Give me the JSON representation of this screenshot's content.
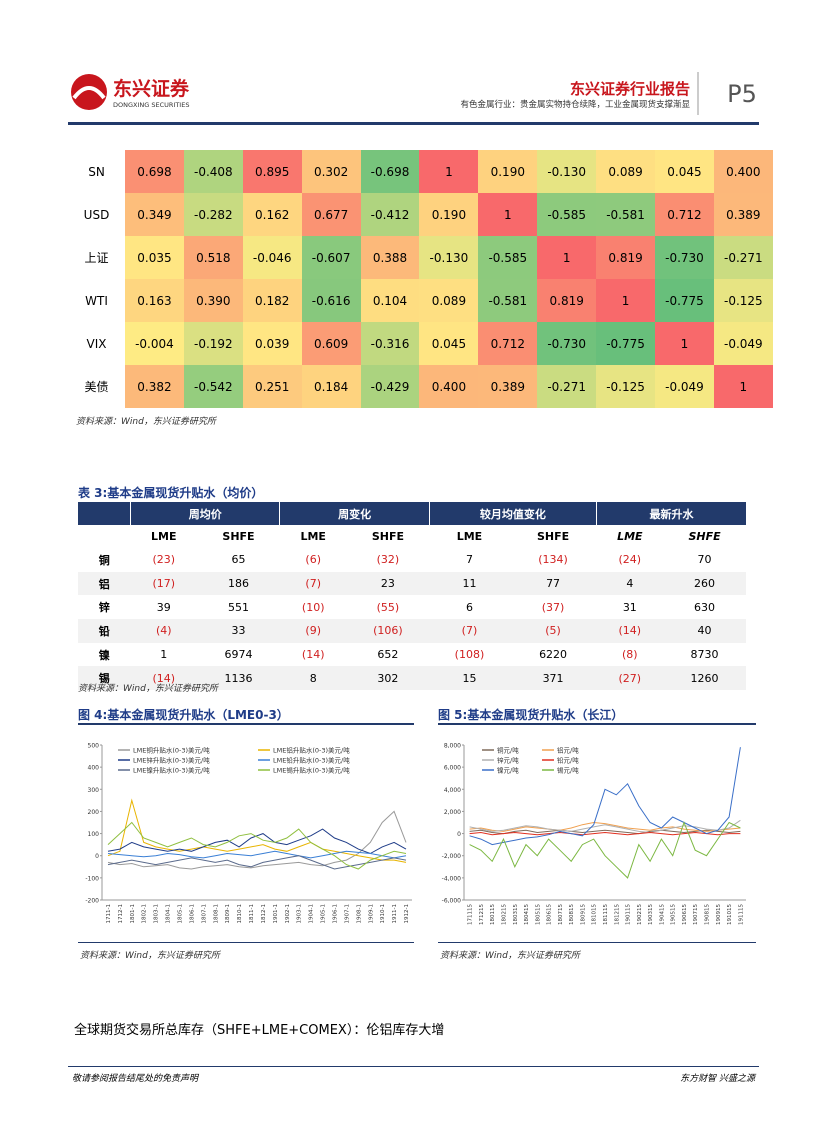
{
  "header": {
    "logo_cn": "东兴证券",
    "logo_en": "DONGXING SECURITIES",
    "report_title": "东兴证券行业报告",
    "subtitle": "有色金属行业：贵金属实物持仓续降，工业金属现货支撑渐显",
    "page": "P5"
  },
  "corr_table": {
    "rows": [
      {
        "label": "SN",
        "values": [
          "0.698",
          "-0.408",
          "0.895",
          "0.302",
          "-0.698",
          "1",
          "0.190",
          "-0.130",
          "0.089",
          "0.045",
          "0.400"
        ]
      },
      {
        "label": "USD",
        "values": [
          "0.349",
          "-0.282",
          "0.162",
          "0.677",
          "-0.412",
          "0.190",
          "1",
          "-0.585",
          "-0.581",
          "0.712",
          "0.389"
        ]
      },
      {
        "label": "上证",
        "values": [
          "0.035",
          "0.518",
          "-0.046",
          "-0.607",
          "0.388",
          "-0.130",
          "-0.585",
          "1",
          "0.819",
          "-0.730",
          "-0.271"
        ]
      },
      {
        "label": "WTI",
        "values": [
          "0.163",
          "0.390",
          "0.182",
          "-0.616",
          "0.104",
          "0.089",
          "-0.581",
          "0.819",
          "1",
          "-0.775",
          "-0.125"
        ]
      },
      {
        "label": "VIX",
        "values": [
          "-0.004",
          "-0.192",
          "0.039",
          "0.609",
          "-0.316",
          "0.045",
          "0.712",
          "-0.730",
          "-0.775",
          "1",
          "-0.049"
        ]
      },
      {
        "label": "美债",
        "values": [
          "0.382",
          "-0.542",
          "0.251",
          "0.184",
          "-0.429",
          "0.400",
          "0.389",
          "-0.271",
          "-0.125",
          "-0.049",
          "1"
        ]
      }
    ],
    "source": "资料来源：Wind，东兴证券研究所"
  },
  "premium_table": {
    "title": "表 3:基本金属现货升贴水（均价）",
    "groups": [
      "周均价",
      "周变化",
      "较月均值变化",
      "最新升水"
    ],
    "subheaders": [
      "LME",
      "SHFE",
      "LME",
      "SHFE",
      "LME",
      "SHFE",
      "LME",
      "SHFE"
    ],
    "rows": [
      {
        "label": "铜",
        "values": [
          "(23)",
          "65",
          "(6)",
          "(32)",
          "7",
          "(134)",
          "(24)",
          "70"
        ]
      },
      {
        "label": "铝",
        "values": [
          "(17)",
          "186",
          "(7)",
          "23",
          "11",
          "77",
          "4",
          "260"
        ]
      },
      {
        "label": "锌",
        "values": [
          "39",
          "551",
          "(10)",
          "(55)",
          "6",
          "(37)",
          "31",
          "630"
        ]
      },
      {
        "label": "铅",
        "values": [
          "(4)",
          "33",
          "(9)",
          "(106)",
          "(7)",
          "(5)",
          "(14)",
          "40"
        ]
      },
      {
        "label": "镍",
        "values": [
          "1",
          "6974",
          "(14)",
          "652",
          "(108)",
          "6220",
          "(8)",
          "8730"
        ]
      },
      {
        "label": "锡",
        "values": [
          "(14)",
          "1136",
          "8",
          "302",
          "15",
          "371",
          "(27)",
          "1260"
        ]
      }
    ],
    "source": "资料来源：Wind，东兴证券研究所"
  },
  "chart_data": [
    {
      "type": "line",
      "title": "图 4:基本金属现货升贴水（LME0-3）",
      "source": "资料来源：Wind，东兴证券研究所",
      "categories": [
        "1711-1",
        "1712-1",
        "1801-1",
        "1802-1",
        "1803-1",
        "1804-1",
        "1805-1",
        "1806-1",
        "1807-1",
        "1808-1",
        "1809-1",
        "1810-1",
        "1811-1",
        "1812-1",
        "1901-1",
        "1902-1",
        "1903-1",
        "1904-1",
        "1905-1",
        "1906-1",
        "1907-1",
        "1908-1",
        "1909-1",
        "1910-1",
        "1911-1",
        "1912-1"
      ],
      "ylim": [
        -200,
        500
      ],
      "yticks": [
        -200,
        -100,
        0,
        100,
        200,
        300,
        400,
        500
      ],
      "series": [
        {
          "name": "LME铜升贴水(0-3)美元/吨",
          "color": "#9a9a9a",
          "values": [
            -30,
            -40,
            -35,
            -50,
            -45,
            -40,
            -55,
            -60,
            -50,
            -45,
            -40,
            -50,
            -55,
            -45,
            -40,
            -35,
            -30,
            -40,
            -45,
            -30,
            -20,
            10,
            60,
            150,
            200,
            60
          ]
        },
        {
          "name": "LME铝升贴水(0-3)美元/吨",
          "color": "#e8b400",
          "values": [
            0,
            20,
            250,
            60,
            40,
            30,
            20,
            30,
            40,
            30,
            20,
            30,
            40,
            50,
            30,
            20,
            40,
            60,
            30,
            20,
            10,
            0,
            -10,
            -20,
            -20,
            -30
          ]
        },
        {
          "name": "LME锌升贴水(0-3)美元/吨",
          "color": "#1f3c88",
          "values": [
            20,
            30,
            60,
            40,
            30,
            20,
            30,
            20,
            40,
            60,
            70,
            40,
            80,
            100,
            60,
            50,
            70,
            90,
            120,
            80,
            60,
            30,
            10,
            40,
            60,
            30
          ]
        },
        {
          "name": "LME铅升贴水(0-3)美元/吨",
          "color": "#3a7fd5",
          "values": [
            10,
            5,
            0,
            -5,
            0,
            10,
            5,
            -5,
            -10,
            0,
            10,
            5,
            0,
            10,
            20,
            10,
            0,
            -10,
            0,
            10,
            20,
            15,
            10,
            0,
            -10,
            0
          ]
        },
        {
          "name": "LME镍升贴水(0-3)美元/吨",
          "color": "#5b6b8c",
          "values": [
            -40,
            -30,
            -20,
            -30,
            -40,
            -30,
            -20,
            -10,
            -20,
            -30,
            -20,
            -40,
            -50,
            -30,
            -20,
            -10,
            0,
            -20,
            -40,
            -60,
            -50,
            -40,
            -30,
            -20,
            -10,
            -20
          ]
        },
        {
          "name": "LME锡升贴水(0-3)美元/吨",
          "color": "#8fbf3f",
          "values": [
            50,
            100,
            150,
            80,
            60,
            40,
            60,
            80,
            50,
            40,
            60,
            90,
            100,
            70,
            60,
            80,
            120,
            60,
            30,
            0,
            -40,
            -60,
            -20,
            0,
            20,
            10
          ]
        }
      ]
    },
    {
      "type": "line",
      "title": "图 5:基本金属现货升贴水（长江）",
      "source": "资料来源：Wind，东兴证券研究所",
      "categories": [
        "171115",
        "171215",
        "180115",
        "180215",
        "180315",
        "180415",
        "180515",
        "180615",
        "180715",
        "180815",
        "180915",
        "181015",
        "181115",
        "181215",
        "190115",
        "190215",
        "190315",
        "190415",
        "190515",
        "190615",
        "190715",
        "190815",
        "190915",
        "191015",
        "191115"
      ],
      "ylim": [
        -6000,
        8000
      ],
      "yticks": [
        {
          "value": -6000,
          "label": "-6,000"
        },
        {
          "value": -4000,
          "label": "-4,000"
        },
        {
          "value": -2000,
          "label": "-2,000"
        },
        0,
        {
          "value": 2000,
          "label": "2,000"
        },
        {
          "value": 4000,
          "label": "4,000"
        },
        {
          "value": 6000,
          "label": "6,000"
        },
        {
          "value": 8000,
          "label": "8,000"
        }
      ],
      "series": [
        {
          "name": "铜元/吨",
          "color": "#7f6a5a",
          "values": [
            200,
            300,
            100,
            0,
            200,
            300,
            100,
            200,
            300,
            200,
            100,
            200,
            300,
            200,
            100,
            0,
            200,
            300,
            200,
            100,
            200,
            300,
            200,
            100,
            200
          ]
        },
        {
          "name": "铝元/吨",
          "color": "#f0a050",
          "values": [
            400,
            500,
            300,
            200,
            400,
            600,
            500,
            400,
            300,
            500,
            800,
            1000,
            900,
            700,
            500,
            400,
            300,
            500,
            600,
            400,
            300,
            200,
            300,
            400,
            500
          ]
        },
        {
          "name": "锌元/吨",
          "color": "#b0b0b0",
          "values": [
            600,
            400,
            200,
            300,
            500,
            700,
            600,
            400,
            300,
            200,
            400,
            600,
            800,
            600,
            400,
            200,
            100,
            300,
            500,
            700,
            600,
            400,
            300,
            500,
            1200
          ]
        },
        {
          "name": "铅元/吨",
          "color": "#e03020",
          "values": [
            0,
            100,
            -100,
            0,
            100,
            0,
            -100,
            0,
            100,
            0,
            -100,
            0,
            100,
            0,
            -100,
            0,
            100,
            0,
            -100,
            0,
            100,
            0,
            -100,
            0,
            0
          ]
        },
        {
          "name": "镍元/吨",
          "color": "#3a6fc8",
          "values": [
            -200,
            -500,
            -1000,
            -800,
            -600,
            -400,
            -300,
            -100,
            200,
            0,
            -200,
            800,
            4000,
            3500,
            4500,
            2500,
            1000,
            500,
            1500,
            1000,
            500,
            0,
            300,
            1500,
            7800
          ]
        },
        {
          "name": "锡元/吨",
          "color": "#7cb842",
          "values": [
            -1000,
            -1500,
            -2500,
            -500,
            -3000,
            -1000,
            -2000,
            -500,
            -1500,
            -2500,
            -1000,
            -500,
            -2000,
            -3000,
            -4000,
            -1000,
            -2500,
            -500,
            -2000,
            1000,
            -1500,
            -2000,
            -500,
            1000,
            500
          ]
        }
      ]
    }
  ],
  "body_text": "全球期货交易所总库存（SHFE+LME+COMEX）：伦铝库存大增",
  "footer": {
    "left": "敬请参阅报告结尾处的免责声明",
    "right": "东方财智 兴盛之源"
  }
}
